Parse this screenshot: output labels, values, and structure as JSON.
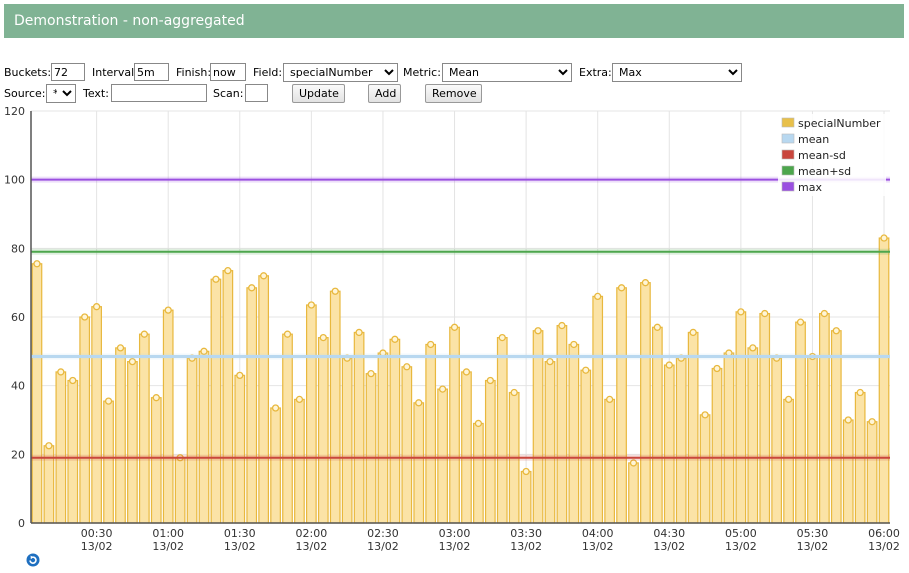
{
  "header": {
    "title": "Demonstration - non-aggregated"
  },
  "controls": {
    "buckets_label": "Buckets:",
    "buckets_value": "72",
    "interval_label": "Interval:",
    "interval_value": "5m",
    "finish_label": "Finish:",
    "finish_value": "now",
    "field_label": "Field:",
    "field_value": "specialNumber",
    "metric_label": "Metric:",
    "metric_value": "Mean",
    "extra_label": "Extra:",
    "extra_value": "Max",
    "source_label": "Source:",
    "source_value": "*",
    "text_label": "Text:",
    "text_value": "",
    "scan_label": "Scan:",
    "scan_value": "",
    "update_label": "Update",
    "add_label": "Add",
    "remove_label": "Remove"
  },
  "colors": {
    "bar_fill": "#fbe3a6",
    "bar_stroke": "#e8b83e",
    "mean": "#b8d8f0",
    "mean_sd_low": "#c9463d",
    "mean_sd_high": "#4da64d",
    "max": "#9a4fe0"
  },
  "chart_data": {
    "type": "bar",
    "xlabel": "",
    "ylabel": "",
    "ylim": [
      0,
      120
    ],
    "yticks": [
      "0",
      "20",
      "40",
      "60",
      "80",
      "100",
      "120"
    ],
    "x_start": "00:05",
    "bucket_minutes": 5,
    "xticks": [
      {
        "time": "00:30",
        "date": "13/02"
      },
      {
        "time": "01:00",
        "date": "13/02"
      },
      {
        "time": "01:30",
        "date": "13/02"
      },
      {
        "time": "02:00",
        "date": "13/02"
      },
      {
        "time": "02:30",
        "date": "13/02"
      },
      {
        "time": "03:00",
        "date": "13/02"
      },
      {
        "time": "03:30",
        "date": "13/02"
      },
      {
        "time": "04:00",
        "date": "13/02"
      },
      {
        "time": "04:30",
        "date": "13/02"
      },
      {
        "time": "05:00",
        "date": "13/02"
      },
      {
        "time": "05:30",
        "date": "13/02"
      },
      {
        "time": "06:00",
        "date": "13/02"
      }
    ],
    "series": [
      {
        "name": "specialNumber",
        "values": [
          75.5,
          22.5,
          44,
          41.5,
          60,
          63,
          35.5,
          51,
          47,
          55,
          36.5,
          62,
          19,
          48,
          50,
          71,
          73.5,
          43,
          68.5,
          72,
          33.5,
          55,
          36,
          63.5,
          54,
          67.5,
          48,
          55.5,
          43.5,
          49.5,
          53.5,
          45.5,
          35,
          52,
          39,
          57,
          44,
          29,
          41.5,
          54,
          38,
          15,
          56,
          47,
          57.5,
          52,
          44.5,
          66,
          36,
          68.5,
          17.5,
          70,
          57,
          46,
          48,
          55.5,
          31.5,
          45,
          49.5,
          61.5,
          51,
          61,
          48,
          36,
          58.5,
          48.5,
          61,
          56,
          30,
          38,
          29.5,
          83
        ]
      },
      {
        "name": "mean",
        "value": 48.5
      },
      {
        "name": "mean-sd",
        "value": 19
      },
      {
        "name": "mean+sd",
        "value": 79
      },
      {
        "name": "max",
        "value": 100
      }
    ],
    "legend": [
      "specialNumber",
      "mean",
      "mean-sd",
      "mean+sd",
      "max"
    ],
    "legend_position": "top-right",
    "grid": true
  }
}
